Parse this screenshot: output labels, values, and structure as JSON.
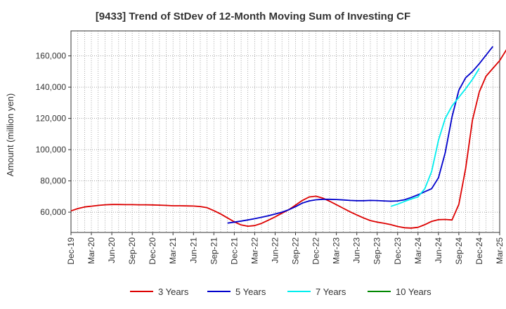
{
  "chart_data": {
    "type": "line",
    "title": "[9433]  Trend of StDev of 12-Month Moving Sum of Investing CF",
    "xlabel": "",
    "ylabel": "Amount (million yen)",
    "ylim": [
      47000,
      176000
    ],
    "yticks": [
      60000,
      80000,
      100000,
      120000,
      140000,
      160000
    ],
    "ytick_labels": [
      "60,000",
      "80,000",
      "100,000",
      "120,000",
      "140,000",
      "160,000"
    ],
    "x_start": "Dec-19",
    "x_end": "Mar-25",
    "xtick_labels": [
      "Dec-19",
      "Mar-20",
      "Jun-20",
      "Sep-20",
      "Dec-20",
      "Mar-21",
      "Jun-21",
      "Sep-21",
      "Dec-21",
      "Mar-22",
      "Jun-22",
      "Sep-22",
      "Dec-22",
      "Mar-23",
      "Jun-23",
      "Sep-23",
      "Dec-23",
      "Mar-24",
      "Jun-24",
      "Sep-24",
      "Dec-24",
      "Mar-25"
    ],
    "grid": true,
    "legend_position": "bottom",
    "series": [
      {
        "name": "3 Years",
        "color": "#dd0000",
        "start": "Dec-19",
        "values": [
          60800,
          62300,
          63300,
          63800,
          64300,
          64700,
          64900,
          64900,
          64800,
          64800,
          64700,
          64700,
          64600,
          64500,
          64300,
          64100,
          64100,
          64000,
          63900,
          63600,
          62800,
          61000,
          58800,
          56300,
          53800,
          51800,
          51000,
          51400,
          52800,
          54800,
          57000,
          59300,
          61500,
          64500,
          67500,
          69700,
          70200,
          69000,
          67000,
          64800,
          62500,
          60200,
          58200,
          56300,
          54600,
          53600,
          52900,
          52000,
          50800,
          50000,
          49800,
          50300,
          52000,
          54100,
          55200,
          55300,
          55000,
          65000,
          88000,
          119000,
          137000,
          147000,
          152000,
          157000,
          164000,
          171000
        ]
      },
      {
        "name": "5 Years",
        "color": "#0000cc",
        "start": "Nov-21",
        "values": [
          53000,
          53600,
          54300,
          55000,
          55800,
          56700,
          57700,
          58800,
          60000,
          61500,
          63500,
          65800,
          67200,
          67900,
          68200,
          68200,
          68100,
          67800,
          67500,
          67300,
          67300,
          67500,
          67400,
          67200,
          67000,
          67200,
          67900,
          69400,
          71100,
          73100,
          75000,
          82000,
          98000,
          121000,
          138000,
          146000,
          150000,
          155000,
          160500,
          166000
        ]
      },
      {
        "name": "7 Years",
        "color": "#00eeee",
        "start": "Nov-23",
        "values": [
          63700,
          65100,
          66800,
          68400,
          69800,
          75000,
          86000,
          106000,
          120000,
          128000,
          133500,
          139000,
          145000,
          152000
        ]
      },
      {
        "name": "10 Years",
        "color": "#008800",
        "start": "Dec-24",
        "values": []
      }
    ]
  }
}
